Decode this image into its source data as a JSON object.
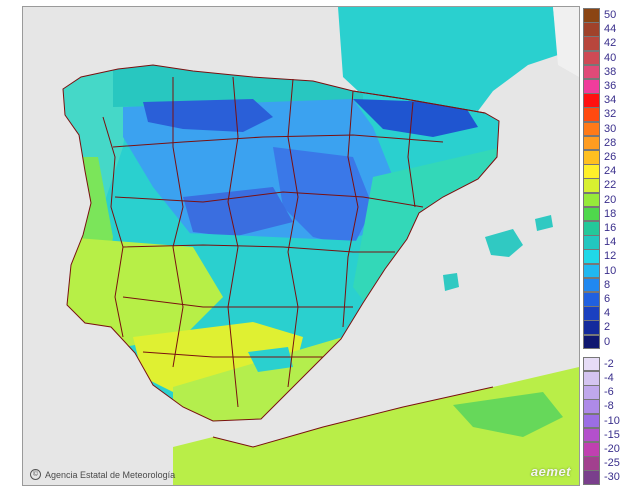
{
  "map": {
    "title": "",
    "credit_text": "Agencia Estatal de Meteorología",
    "brand_text": "aemet",
    "colors": {
      "sea": "#e6e6e6",
      "land_other": "#f0f0f0",
      "border": "#7a1010"
    },
    "regions": [
      {
        "name": "northeast-interior",
        "color": "#2ad0cf"
      },
      {
        "name": "north-meseta",
        "color": "#3ba2f0"
      },
      {
        "name": "cantabrian-coast",
        "color": "#28c7c0"
      },
      {
        "name": "pyrenees",
        "color": "#1f55d0"
      },
      {
        "name": "cantabrian-mountains",
        "color": "#2a5fd8"
      },
      {
        "name": "iberian-system",
        "color": "#3a78e8"
      },
      {
        "name": "central-system",
        "color": "#3a6ee0"
      },
      {
        "name": "galicia-west",
        "color": "#45d8c8"
      },
      {
        "name": "portugal-coast",
        "color": "#7be55a"
      },
      {
        "name": "southwest",
        "color": "#b7ef47"
      },
      {
        "name": "guadalquivir",
        "color": "#dff032"
      },
      {
        "name": "east-coast",
        "color": "#33d8b8"
      },
      {
        "name": "south-coast",
        "color": "#b4ee4d"
      },
      {
        "name": "north-africa",
        "color": "#b9ee48"
      },
      {
        "name": "balearics",
        "color": "#30c9c2"
      }
    ]
  },
  "legend": {
    "positive": [
      {
        "label": "50",
        "color": "#8b4513"
      },
      {
        "label": "44",
        "color": "#a0422a"
      },
      {
        "label": "42",
        "color": "#b8463c"
      },
      {
        "label": "40",
        "color": "#cf4a55"
      },
      {
        "label": "38",
        "color": "#e04a78"
      },
      {
        "label": "36",
        "color": "#f03c9c"
      },
      {
        "label": "34",
        "color": "#ff1010"
      },
      {
        "label": "32",
        "color": "#ff4a10"
      },
      {
        "label": "30",
        "color": "#ff7a18"
      },
      {
        "label": "28",
        "color": "#ff9c20"
      },
      {
        "label": "26",
        "color": "#ffc020"
      },
      {
        "label": "24",
        "color": "#fff02a"
      },
      {
        "label": "22",
        "color": "#d8f030"
      },
      {
        "label": "20",
        "color": "#96ea3a"
      },
      {
        "label": "18",
        "color": "#4fd84c"
      },
      {
        "label": "16",
        "color": "#24c89a"
      },
      {
        "label": "14",
        "color": "#22c7c0"
      },
      {
        "label": "12",
        "color": "#20d8e8"
      },
      {
        "label": "10",
        "color": "#20b8f0"
      },
      {
        "label": "8",
        "color": "#2088f0"
      },
      {
        "label": "6",
        "color": "#2060e0"
      },
      {
        "label": "4",
        "color": "#1a40c0"
      },
      {
        "label": "2",
        "color": "#142a9c"
      },
      {
        "label": "0",
        "color": "#101870"
      }
    ],
    "negative": [
      {
        "label": "-2",
        "color": "#e6dcf6"
      },
      {
        "label": "-4",
        "color": "#d4c4f0"
      },
      {
        "label": "-6",
        "color": "#c0a8ec"
      },
      {
        "label": "-8",
        "color": "#ae8ae8"
      },
      {
        "label": "-10",
        "color": "#9c6ee4"
      },
      {
        "label": "-15",
        "color": "#b350cc"
      },
      {
        "label": "-20",
        "color": "#c040b0"
      },
      {
        "label": "-25",
        "color": "#a2408e"
      },
      {
        "label": "-30",
        "color": "#7a3f8c"
      }
    ]
  }
}
